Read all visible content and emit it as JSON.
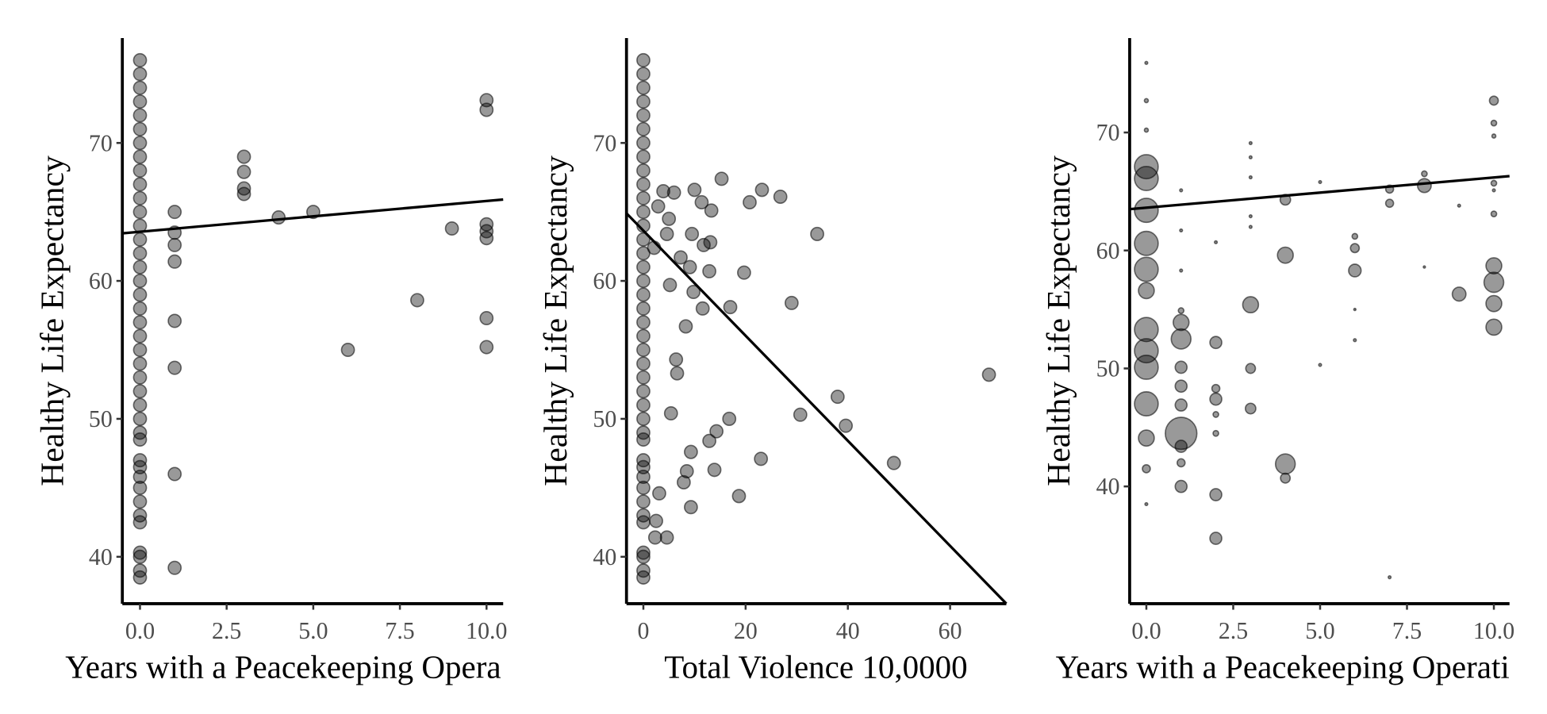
{
  "chart_data": [
    {
      "type": "scatter",
      "y_label": "Healthy Life Expectancy",
      "x_label": "Years with a Peacekeeping Opera",
      "color": "#000000",
      "x": [
        0,
        0,
        0,
        0,
        0,
        0,
        0,
        0,
        0,
        0,
        0,
        0,
        0,
        0,
        0,
        0,
        0,
        0,
        0,
        0,
        0,
        0,
        0,
        0,
        0,
        0,
        0,
        0,
        0,
        0,
        0,
        0,
        0,
        0,
        0,
        0,
        0,
        0,
        0,
        0,
        1,
        1,
        1,
        1,
        1,
        1,
        1,
        1,
        3,
        3,
        3,
        3,
        4,
        5,
        6,
        8,
        9,
        10,
        10,
        10,
        10,
        10,
        10,
        10
      ],
      "y": [
        38.5,
        39,
        40,
        40.3,
        42.5,
        43,
        44,
        45,
        45.8,
        46.5,
        47,
        48.5,
        49,
        50,
        51,
        52,
        53,
        54,
        55,
        56,
        57,
        58,
        59,
        60,
        61,
        62,
        63,
        64,
        65,
        66,
        67,
        68,
        69,
        70,
        71,
        72,
        73,
        74,
        75,
        76,
        39.2,
        46,
        53.7,
        57.1,
        61.4,
        62.6,
        63.5,
        65,
        66.3,
        66.7,
        67.9,
        69,
        64.6,
        65,
        55,
        58.6,
        63.8,
        55.2,
        57.3,
        63.1,
        63.6,
        64.1,
        72.4,
        73.1
      ],
      "fit": {
        "x": [
          -0.51,
          10.48
        ],
        "y": [
          63.45,
          65.9
        ]
      },
      "xlim": [
        -0.51,
        10.48
      ],
      "ylim": [
        36.6,
        77.6
      ],
      "xticks": [
        {
          "value": 0,
          "label": "0.0"
        },
        {
          "value": 2.5,
          "label": "2.5"
        },
        {
          "value": 5,
          "label": "5.0"
        },
        {
          "value": 7.5,
          "label": "7.5"
        },
        {
          "value": 10,
          "label": "10.0"
        }
      ],
      "yticks": [
        40,
        50,
        60,
        70
      ]
    },
    {
      "type": "scatter",
      "y_label": "Healthy Life Expectancy",
      "x_label": "Total Violence  10,0000",
      "color": "#000000",
      "x": [
        0,
        0,
        0,
        0,
        0,
        0,
        0,
        0,
        0,
        0,
        0,
        0,
        0,
        0,
        0,
        0,
        0,
        0,
        0,
        0,
        0,
        0,
        0,
        0,
        0,
        0,
        0,
        0,
        0,
        0,
        0,
        0,
        0,
        0,
        0,
        0,
        0,
        0,
        0,
        0,
        3.9,
        6,
        10,
        15.3,
        23.2,
        26.8,
        11.4,
        13.3,
        20.8,
        34,
        2.9,
        5,
        4.6,
        9.5,
        11.8,
        13.1,
        2.1,
        7.3,
        9.1,
        19.7,
        12.9,
        5.2,
        9.8,
        17,
        11.6,
        29,
        8.3,
        6.4,
        6.6,
        67.6,
        38,
        30.7,
        16.8,
        5.4,
        39.6,
        14.3,
        12.9,
        9.3,
        23,
        49,
        8.5,
        13.9,
        7.9,
        3.1,
        18.7,
        9.3,
        2.5,
        4.6,
        2.3
      ],
      "y": [
        38.5,
        39,
        40,
        40.3,
        42.5,
        43,
        44,
        45,
        45.8,
        46.5,
        47,
        48.5,
        49,
        50,
        51,
        52,
        53,
        54,
        55,
        56,
        57,
        58,
        59,
        60,
        61,
        62,
        63,
        64,
        65,
        66,
        67,
        68,
        69,
        70,
        71,
        72,
        73,
        74,
        75,
        76,
        66.5,
        66.4,
        66.6,
        67.4,
        66.6,
        66.1,
        65.7,
        65.1,
        65.7,
        63.4,
        65.4,
        64.5,
        63.4,
        63.4,
        62.6,
        62.8,
        62.4,
        61.7,
        61,
        60.6,
        60.7,
        59.7,
        59.2,
        58.1,
        58,
        58.4,
        56.7,
        54.3,
        53.3,
        53.2,
        51.6,
        50.3,
        50,
        50.4,
        49.5,
        49.1,
        48.4,
        47.6,
        47.1,
        46.8,
        46.2,
        46.3,
        45.4,
        44.6,
        44.4,
        43.6,
        42.6,
        41.4,
        41.4
      ],
      "fit": {
        "x": [
          -3.3,
          71
        ],
        "y": [
          64.9,
          36.6
        ]
      },
      "xlim": [
        -3.3,
        71
      ],
      "ylim": [
        36.6,
        77.6
      ],
      "xticks": [
        0,
        20,
        40,
        60
      ],
      "yticks": [
        40,
        50,
        60,
        70
      ]
    },
    {
      "type": "bubble",
      "y_label": "Healthy Life Expectancy",
      "x_label": "Years with a Peacekeeping Operati",
      "color": "#000000",
      "x": [
        0,
        0,
        0,
        0,
        0,
        0,
        0,
        0,
        0,
        0,
        0,
        0,
        0,
        0,
        0,
        0,
        1,
        1,
        1,
        1,
        1,
        1,
        1,
        1,
        1,
        1,
        1,
        1,
        1,
        2,
        2,
        2,
        2,
        2,
        2,
        2,
        2,
        3,
        3,
        3,
        3,
        3,
        3,
        3,
        3,
        4,
        4,
        4,
        4,
        5,
        5,
        6,
        6,
        6,
        6,
        6,
        7,
        7,
        7,
        8,
        8,
        8,
        9,
        9,
        10,
        10,
        10,
        10,
        10,
        10,
        10,
        10,
        10,
        10
      ],
      "y": [
        67.1,
        66.1,
        63.4,
        60.6,
        58.4,
        53.3,
        50.1,
        47,
        44.1,
        41.5,
        38.5,
        75.9,
        72.7,
        70.2,
        56.6,
        51.5,
        53.9,
        52.5,
        50.1,
        48.5,
        46.9,
        44.5,
        43.4,
        42,
        40,
        65.1,
        61.7,
        58.3,
        54.9,
        52.2,
        48.3,
        47.4,
        46.1,
        44.5,
        39.3,
        35.6,
        60.7,
        55.4,
        50,
        46.6,
        69.1,
        67.9,
        66.2,
        62.9,
        62,
        64.3,
        59.6,
        41.9,
        40.7,
        65.8,
        50.3,
        61.2,
        60.2,
        58.3,
        55,
        52.4,
        65.2,
        64,
        32.3,
        66.5,
        65.5,
        58.6,
        56.3,
        63.8,
        72.7,
        70.8,
        69.7,
        65.7,
        63.1,
        58.7,
        57.3,
        55.5,
        53.5,
        65.1
      ],
      "sizes": [
        36,
        36,
        36,
        36,
        36,
        36,
        36,
        36,
        16,
        4,
        0.5,
        0.5,
        1,
        1,
        16,
        36,
        16,
        25,
        9,
        9,
        9,
        64,
        9,
        4,
        9,
        0.5,
        0.5,
        0.5,
        2,
        9,
        4,
        9,
        2,
        2,
        9,
        9,
        0.5,
        16,
        6,
        7,
        0.5,
        0.5,
        0.5,
        0.5,
        0.5,
        7,
        16,
        25,
        6,
        0.5,
        0.5,
        2,
        5,
        10,
        0.3,
        0.5,
        4,
        4,
        0.5,
        2,
        12,
        0.3,
        12,
        0.5,
        5,
        2,
        1,
        2,
        2,
        16,
        25,
        16,
        16,
        0.5
      ],
      "fit": {
        "x": [
          -0.48,
          10.45
        ],
        "y": [
          63.5,
          66.3
        ]
      },
      "xlim": [
        -0.48,
        10.45
      ],
      "ylim": [
        30.06,
        78.0
      ],
      "xticks": [
        {
          "value": 0,
          "label": "0.0"
        },
        {
          "value": 2.5,
          "label": "2.5"
        },
        {
          "value": 5,
          "label": "5.0"
        },
        {
          "value": 7.5,
          "label": "7.5"
        },
        {
          "value": 10,
          "label": "10.0"
        }
      ],
      "yticks": [
        40,
        50,
        60,
        70
      ]
    }
  ]
}
